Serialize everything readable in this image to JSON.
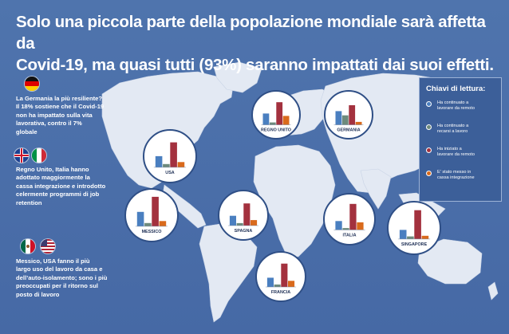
{
  "title": {
    "line1": "Solo una piccola parte della popolazione mondiale sarà affetta da",
    "line2": "Covid-19, ma quasi tutti (93%) saranno impattati dai suoi effetti."
  },
  "notes": {
    "germany": [
      "La Germania la più resiliente?",
      "Il 18% sostiene che il Covid-19",
      "non ha impattato sulla vita",
      "lavorativa, contro il 7%",
      "globale"
    ],
    "uk_italy": [
      "Regno Unito, Italia hanno",
      "adottato maggiormente la",
      "cassa integrazione e introdotto",
      "celermente programmi di job",
      "retention"
    ],
    "mexico_usa": [
      "Messico, USA fanno il più",
      "largo uso del lavoro da casa e",
      "dell’auto-isolamento; sono i più",
      "preoccupati per il ritorno sul",
      "posto di lavoro"
    ]
  },
  "flags": [
    "germany-flag",
    "uk-flag",
    "italy-flag",
    "mexico-flag",
    "usa-flag"
  ],
  "legend": {
    "title": "Chiavi di lettura:",
    "items": [
      {
        "label": [
          "Ha continuato a",
          "lavorare da remoto"
        ],
        "color": "#4a7fc0"
      },
      {
        "label": [
          "Ha continuato a",
          "recarsi a lavoro"
        ],
        "color": "#6d8a7c"
      },
      {
        "label": [
          "Ha iniziato a",
          "lavorare da remoto"
        ],
        "color": "#a3313e"
      },
      {
        "label": [
          "E' stato messo in",
          "cassa integrazione"
        ],
        "color": "#d96a1c"
      }
    ]
  },
  "colors": {
    "background": "#4a6da8",
    "land": "#e3e9f3",
    "series": [
      "#4a7fc0",
      "#6d8a7c",
      "#a3313e",
      "#d96a1c"
    ]
  },
  "chart_data": {
    "type": "bar",
    "series_labels": [
      "Ha continuato a lavorare da remoto",
      "Ha continuato a recarsi a lavoro",
      "Ha iniziato a lavorare da remoto",
      "E' stato messo in cassa integrazione"
    ],
    "charts": [
      {
        "label": "REGNO UNITO",
        "values": [
          19,
          4,
          38,
          15
        ]
      },
      {
        "label": "GERMANIA",
        "values": [
          23,
          16,
          33,
          5
        ]
      },
      {
        "label": "USA",
        "values": [
          17,
          5,
          38,
          8
        ]
      },
      {
        "label": "MESSICO",
        "values": [
          22,
          5,
          45,
          8
        ]
      },
      {
        "label": "SPAGNA",
        "values": [
          16,
          4,
          36,
          9
        ]
      },
      {
        "label": "ITALIA",
        "values": [
          14,
          3,
          41,
          12
        ]
      },
      {
        "label": "SINGAPORE",
        "values": [
          14,
          4,
          44,
          5
        ]
      },
      {
        "label": "FRANCIA",
        "values": [
          15,
          4,
          38,
          10
        ]
      }
    ]
  }
}
